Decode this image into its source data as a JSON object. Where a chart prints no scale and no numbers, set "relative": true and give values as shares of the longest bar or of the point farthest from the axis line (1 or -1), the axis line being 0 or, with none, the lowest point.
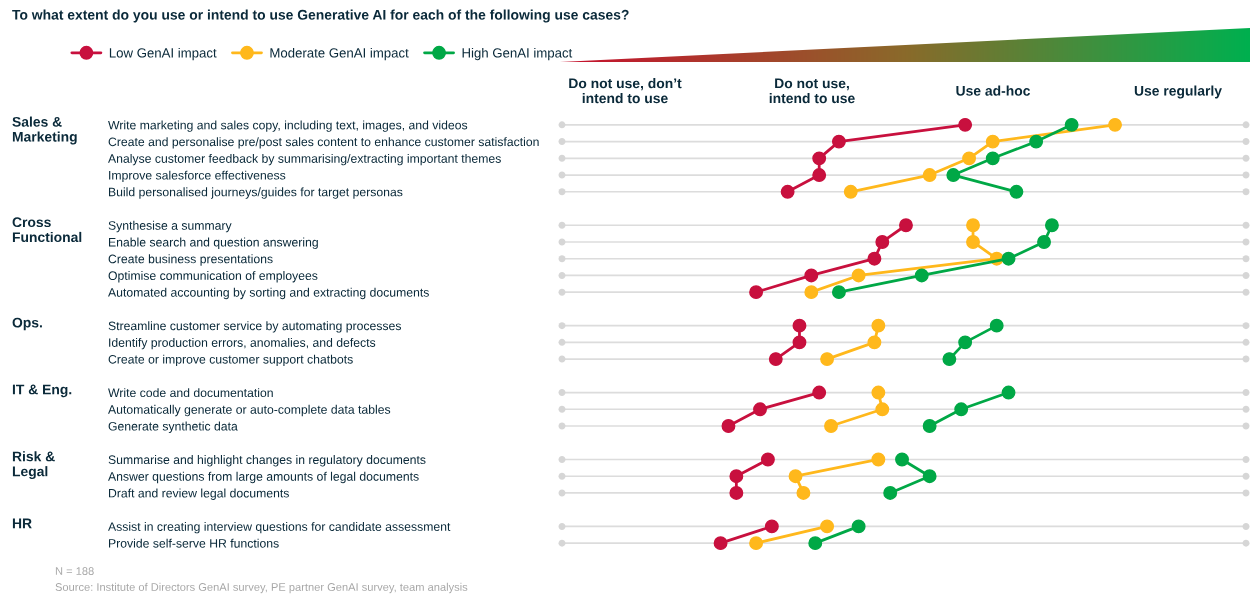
{
  "chart_data": {
    "type": "line",
    "title": "To what extent do you use or intend to use Generative AI for each of the following use cases?",
    "categories": [
      "Write marketing and sales copy, including text, images, and videos",
      "Create and personalise pre/post sales content to enhance customer satisfaction",
      "Analyse customer feedback by summarising/extracting important themes",
      "Improve salesforce effectiveness",
      "Build personalised journeys/guides for target personas",
      null,
      "Synthesise a summary",
      "Enable search and question answering",
      "Create business presentations",
      "Optimise communication of employees",
      "Automated accounting by sorting and extracting documents",
      null,
      "Streamline customer service by automating processes",
      "Identify production errors, anomalies, and defects",
      "Create or improve customer support chatbots",
      null,
      "Write code and documentation",
      "Automatically generate or auto-complete data tables",
      "Generate synthetic data",
      null,
      "Summarise and highlight changes in regulatory documents",
      "Answer questions from large amounts of legal documents",
      "Draft and review legal documents",
      null,
      "Assist in creating interview questions for candidate assessment",
      "Provide self-serve HR functions"
    ],
    "orientation": "horizontal",
    "relative": true,
    "series": [
      {
        "name": "Low GenAI impact",
        "color": "#c8103e",
        "values": [
          0.62,
          0.3,
          0.25,
          0.25,
          0.17,
          null,
          0.47,
          0.41,
          0.39,
          0.23,
          0.09,
          null,
          0.2,
          0.2,
          0.14,
          null,
          0.25,
          0.1,
          0.02,
          null,
          0.12,
          0.04,
          0.04,
          null,
          0.13,
          0
        ]
      },
      {
        "name": "Moderate GenAI impact",
        "color": "#ffb81c",
        "values": [
          1,
          0.69,
          0.63,
          0.53,
          0.33,
          null,
          0.64,
          0.64,
          0.7,
          0.35,
          0.23,
          null,
          0.4,
          0.39,
          0.27,
          null,
          0.4,
          0.41,
          0.28,
          null,
          0.4,
          0.19,
          0.21,
          null,
          0.27,
          0.09
        ]
      },
      {
        "name": "High GenAI impact",
        "color": "#00a846",
        "values": [
          0.89,
          0.8,
          0.69,
          0.59,
          0.75,
          null,
          0.84,
          0.82,
          0.73,
          0.51,
          0.3,
          null,
          0.7,
          0.62,
          0.58,
          null,
          0.73,
          0.61,
          0.53,
          null,
          0.46,
          0.53,
          0.43,
          null,
          0.35,
          0.24
        ]
      }
    ],
    "marker": "circle",
    "line_style": "solid",
    "grid": "y",
    "legend": "top left",
    "annotations": [
      "Do not use, don’t\nintend to use",
      "Do not use,\nintend to use",
      "Use ad-hoc",
      "Use regularly",
      "Sales &\nMarketing",
      "Cross\nFunctional",
      "Ops.",
      "IT & Eng.",
      "Risk &\nLegal",
      "HR",
      "N = 188",
      "Source: Institute of Directors GenAI survey, PE partner GenAI survey, team analysis"
    ]
  }
}
